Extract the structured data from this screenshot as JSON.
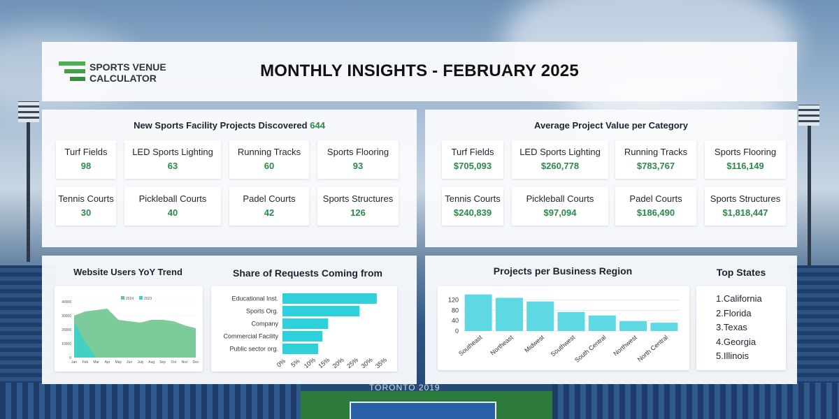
{
  "header": {
    "logo_line1": "SPORTS VENUE",
    "logo_line2": "CALCULATOR",
    "title": "MONTHLY INSIGHTS - FEBRUARY 2025"
  },
  "projects": {
    "title": "New Sports Facility Projects Discovered",
    "total": "644",
    "items": [
      {
        "label": "Turf Fields",
        "value": "98"
      },
      {
        "label": "LED Sports Lighting",
        "value": "63"
      },
      {
        "label": "Running Tracks",
        "value": "60"
      },
      {
        "label": "Sports Flooring",
        "value": "93"
      },
      {
        "label": "Tennis Courts",
        "value": "30"
      },
      {
        "label": "Pickleball Courts",
        "value": "40"
      },
      {
        "label": "Padel Courts",
        "value": "42"
      },
      {
        "label": "Sports Structures",
        "value": "126"
      }
    ]
  },
  "avg_value": {
    "title": "Average Project Value per Category",
    "items": [
      {
        "label": "Turf Fields",
        "value": "$705,093"
      },
      {
        "label": "LED Sports Lighting",
        "value": "$260,778"
      },
      {
        "label": "Running Tracks",
        "value": "$783,767"
      },
      {
        "label": "Sports Flooring",
        "value": "$116,149"
      },
      {
        "label": "Tennis Courts",
        "value": "$240,839"
      },
      {
        "label": "Pickleball Courts",
        "value": "$97,094"
      },
      {
        "label": "Padel Courts",
        "value": "$186,490"
      },
      {
        "label": "Sports Structures",
        "value": "$1,818,447"
      }
    ]
  },
  "users_trend": {
    "title": "Website Users YoY Trend"
  },
  "requests": {
    "title": "Share of Requests Coming from"
  },
  "regions": {
    "title": "Projects per Business Region"
  },
  "top_states": {
    "title": "Top States",
    "items": [
      "California",
      "Florida",
      "Texas",
      "Georgia",
      "Illinois"
    ]
  },
  "background_text": "TORONTO 2019",
  "colors": {
    "accent_green": "#2a8a4a",
    "bar_teal": "#2fd0d8",
    "area_2024": "#2e8b57",
    "area_2023": "#3fd0c9"
  },
  "chart_data": [
    {
      "type": "area",
      "title": "Website Users YoY Trend",
      "categories": [
        "Jan",
        "Feb",
        "Mar",
        "Apr",
        "May",
        "Jun",
        "July",
        "Aug",
        "Sep",
        "Oct",
        "Nov",
        "Dec"
      ],
      "ylim": [
        0,
        40000
      ],
      "yticks": [
        "0",
        "10000",
        "20000",
        "30000",
        "40000"
      ],
      "series": [
        {
          "name": "2024",
          "values": [
            30000,
            33000,
            34000,
            35000,
            27000,
            26000,
            25000,
            27000,
            27000,
            26000,
            23000,
            21000
          ],
          "color": "#6fc48f"
        },
        {
          "name": "2023",
          "values": [
            26000,
            11000,
            0,
            null,
            null,
            null,
            null,
            null,
            null,
            null,
            null,
            null
          ],
          "color": "#3fd0c9"
        }
      ],
      "legend": "top"
    },
    {
      "type": "bar",
      "orientation": "horizontal",
      "title": "Share of Requests Coming from",
      "categories": [
        "Educational Inst.",
        "Sports Org.",
        "Company",
        "Commercial Facility",
        "Public sector org."
      ],
      "values": [
        33,
        27,
        16,
        14,
        12.5
      ],
      "xlim": [
        0,
        35
      ],
      "xticks": [
        "0%",
        "5%",
        "10%",
        "15%",
        "20%",
        "25%",
        "30%",
        "35%"
      ]
    },
    {
      "type": "bar",
      "title": "Projects per Business Region",
      "categories": [
        "Southeast",
        "Northeast",
        "Midwest",
        "Southwest",
        "South Central",
        "Northwest",
        "North Central"
      ],
      "values": [
        141,
        128,
        114,
        73,
        60,
        38,
        32
      ],
      "ylim": [
        0,
        140
      ],
      "yticks": [
        "0",
        "40",
        "80",
        "120"
      ]
    }
  ]
}
